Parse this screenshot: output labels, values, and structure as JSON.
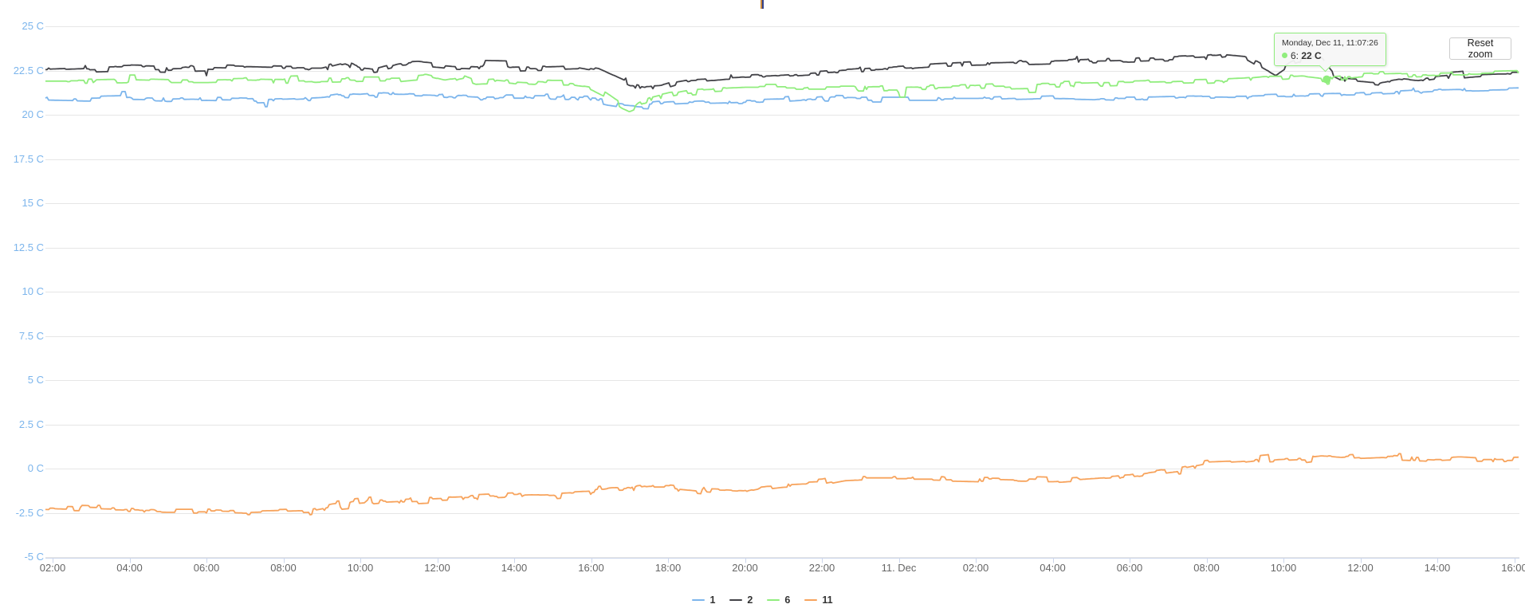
{
  "title_mark": {
    "colors": [
      "#c98a3f",
      "#32418c"
    ]
  },
  "reset_zoom_button": {
    "label": "Reset zoom"
  },
  "tooltip": {
    "header": "Monday, Dec 11, 11:07:26",
    "series": "6:",
    "value": "22 C",
    "marker_color": "#90ed7d",
    "border_color": "#90ed7d",
    "anchor_t_hours": 35.123,
    "anchor_value": 22
  },
  "legend": {
    "items": [
      {
        "label": "1",
        "color": "#7cb5ec"
      },
      {
        "label": "2",
        "color": "#434348"
      },
      {
        "label": "6",
        "color": "#90ed7d"
      },
      {
        "label": "11",
        "color": "#f7a35c"
      }
    ]
  },
  "colors": {
    "background": "#ffffff",
    "grid": "#e6e6e6",
    "axis_line": "#ccd6eb",
    "tick": "#ccd6eb",
    "y_labels": "#7cb5ec",
    "x_labels": "#666666"
  },
  "chart_data": {
    "type": "line",
    "title": "",
    "xlabel": "",
    "ylabel": "",
    "x_unit": "hours since Dec 10 00:00",
    "xlim_hours": [
      1.81,
      40.15
    ],
    "ylim": [
      -5,
      25
    ],
    "grid": "horizontal-only",
    "legend_position": "bottom-center",
    "y_ticks": [
      {
        "v": 25,
        "label": "25 C"
      },
      {
        "v": 22.5,
        "label": "22.5 C"
      },
      {
        "v": 20,
        "label": "20 C"
      },
      {
        "v": 17.5,
        "label": "17.5 C"
      },
      {
        "v": 15,
        "label": "15 C"
      },
      {
        "v": 12.5,
        "label": "12.5 C"
      },
      {
        "v": 10,
        "label": "10 C"
      },
      {
        "v": 7.5,
        "label": "7.5 C"
      },
      {
        "v": 5,
        "label": "5 C"
      },
      {
        "v": 2.5,
        "label": "2.5 C"
      },
      {
        "v": 0,
        "label": "0 C"
      },
      {
        "v": -2.5,
        "label": "-2.5 C"
      },
      {
        "v": -5,
        "label": "-5 C"
      }
    ],
    "x_ticks": [
      {
        "t": 2,
        "label": "02:00"
      },
      {
        "t": 4,
        "label": "04:00"
      },
      {
        "t": 6,
        "label": "06:00"
      },
      {
        "t": 8,
        "label": "08:00"
      },
      {
        "t": 10,
        "label": "10:00"
      },
      {
        "t": 12,
        "label": "12:00"
      },
      {
        "t": 14,
        "label": "14:00"
      },
      {
        "t": 16,
        "label": "16:00"
      },
      {
        "t": 18,
        "label": "18:00"
      },
      {
        "t": 20,
        "label": "20:00"
      },
      {
        "t": 22,
        "label": "22:00"
      },
      {
        "t": 24,
        "label": "11. Dec"
      },
      {
        "t": 26,
        "label": "02:00"
      },
      {
        "t": 28,
        "label": "04:00"
      },
      {
        "t": 30,
        "label": "06:00"
      },
      {
        "t": 32,
        "label": "08:00"
      },
      {
        "t": 34,
        "label": "10:00"
      },
      {
        "t": 36,
        "label": "12:00"
      },
      {
        "t": 38,
        "label": "14:00"
      },
      {
        "t": 40,
        "label": "16:00"
      }
    ],
    "series": [
      {
        "name": "1",
        "color": "#7cb5ec",
        "noise": 0.1,
        "points": [
          [
            1.8,
            20.9
          ],
          [
            3,
            20.85
          ],
          [
            4,
            20.9
          ],
          [
            5,
            20.85
          ],
          [
            6,
            20.9
          ],
          [
            7,
            20.85
          ],
          [
            8,
            20.9
          ],
          [
            9,
            21.0
          ],
          [
            9.5,
            21.15
          ],
          [
            10,
            21.1
          ],
          [
            10.5,
            21.2
          ],
          [
            11,
            21.15
          ],
          [
            12,
            21.1
          ],
          [
            13,
            21.0
          ],
          [
            14,
            21.0
          ],
          [
            15,
            21.0
          ],
          [
            16,
            20.9
          ],
          [
            16.5,
            20.7
          ],
          [
            17,
            20.55
          ],
          [
            17.5,
            20.5
          ],
          [
            18,
            20.6
          ],
          [
            18.5,
            20.65
          ],
          [
            19,
            20.7
          ],
          [
            20,
            20.75
          ],
          [
            21,
            20.8
          ],
          [
            22,
            20.95
          ],
          [
            23,
            20.9
          ],
          [
            24,
            20.9
          ],
          [
            25,
            20.9
          ],
          [
            26,
            20.9
          ],
          [
            27,
            20.95
          ],
          [
            28,
            21.0
          ],
          [
            29,
            20.95
          ],
          [
            30,
            20.9
          ],
          [
            31,
            20.95
          ],
          [
            32,
            21.0
          ],
          [
            33,
            21.0
          ],
          [
            34,
            21.05
          ],
          [
            35,
            21.1
          ],
          [
            36,
            21.15
          ],
          [
            37,
            21.25
          ],
          [
            38,
            21.35
          ],
          [
            39,
            21.4
          ],
          [
            40.2,
            21.45
          ]
        ]
      },
      {
        "name": "2",
        "color": "#434348",
        "noise": 0.14,
        "points": [
          [
            1.8,
            22.55
          ],
          [
            3,
            22.65
          ],
          [
            4,
            22.7
          ],
          [
            5,
            22.65
          ],
          [
            6,
            22.7
          ],
          [
            7,
            22.65
          ],
          [
            8,
            22.6
          ],
          [
            9,
            22.6
          ],
          [
            9.6,
            22.95
          ],
          [
            10,
            22.6
          ],
          [
            10.4,
            22.5
          ],
          [
            11,
            22.85
          ],
          [
            11.5,
            22.9
          ],
          [
            12,
            22.8
          ],
          [
            12.5,
            22.7
          ],
          [
            13,
            22.65
          ],
          [
            14,
            22.6
          ],
          [
            15,
            22.65
          ],
          [
            15.7,
            22.7
          ],
          [
            16.2,
            22.5
          ],
          [
            16.6,
            22.1
          ],
          [
            17,
            21.7
          ],
          [
            17.4,
            21.5
          ],
          [
            17.8,
            21.55
          ],
          [
            18.2,
            21.8
          ],
          [
            18.6,
            21.95
          ],
          [
            19,
            22.0
          ],
          [
            19.5,
            22.1
          ],
          [
            20,
            22.15
          ],
          [
            21,
            22.25
          ],
          [
            22,
            22.4
          ],
          [
            23,
            22.55
          ],
          [
            24,
            22.65
          ],
          [
            25,
            22.8
          ],
          [
            26,
            22.9
          ],
          [
            27,
            22.95
          ],
          [
            28,
            23.0
          ],
          [
            29,
            23.05
          ],
          [
            30,
            23.1
          ],
          [
            31,
            23.15
          ],
          [
            32,
            23.25
          ],
          [
            32.5,
            23.4
          ],
          [
            33,
            23.3
          ],
          [
            33.4,
            22.8
          ],
          [
            33.8,
            22.3
          ],
          [
            34.2,
            22.9
          ],
          [
            34.6,
            23.2
          ],
          [
            35,
            23.1
          ],
          [
            35.3,
            22.3
          ],
          [
            35.6,
            21.95
          ],
          [
            36,
            21.9
          ],
          [
            36.5,
            21.8
          ],
          [
            37,
            22.0
          ],
          [
            37.5,
            21.9
          ],
          [
            38,
            22.05
          ],
          [
            38.5,
            22.15
          ],
          [
            39,
            22.25
          ],
          [
            39.6,
            22.3
          ],
          [
            40.2,
            22.3
          ]
        ]
      },
      {
        "name": "6",
        "color": "#90ed7d",
        "noise": 0.14,
        "points": [
          [
            1.8,
            21.9
          ],
          [
            3,
            21.9
          ],
          [
            4,
            21.95
          ],
          [
            5,
            21.9
          ],
          [
            6,
            21.9
          ],
          [
            7,
            21.95
          ],
          [
            8,
            21.9
          ],
          [
            9,
            21.95
          ],
          [
            10,
            22.0
          ],
          [
            11,
            22.0
          ],
          [
            11.7,
            22.15
          ],
          [
            12.2,
            21.9
          ],
          [
            12.7,
            22.1
          ],
          [
            13,
            21.85
          ],
          [
            13.5,
            21.9
          ],
          [
            14,
            21.8
          ],
          [
            14.5,
            21.75
          ],
          [
            15,
            21.7
          ],
          [
            15.5,
            21.7
          ],
          [
            16,
            21.55
          ],
          [
            16.4,
            21.1
          ],
          [
            16.8,
            20.5
          ],
          [
            17,
            20.3
          ],
          [
            17.3,
            20.6
          ],
          [
            17.6,
            20.9
          ],
          [
            18,
            21.1
          ],
          [
            18.5,
            21.3
          ],
          [
            19,
            21.4
          ],
          [
            19.5,
            21.45
          ],
          [
            20,
            21.5
          ],
          [
            21,
            21.5
          ],
          [
            22,
            21.5
          ],
          [
            23,
            21.5
          ],
          [
            24,
            21.5
          ],
          [
            25,
            21.55
          ],
          [
            26,
            21.6
          ],
          [
            27,
            21.65
          ],
          [
            28,
            21.7
          ],
          [
            29,
            21.75
          ],
          [
            30,
            21.8
          ],
          [
            31,
            21.85
          ],
          [
            32,
            21.9
          ],
          [
            33,
            22.0
          ],
          [
            33.5,
            22.1
          ],
          [
            34,
            22.1
          ],
          [
            34.5,
            22.15
          ],
          [
            35.1,
            22.0
          ],
          [
            35.6,
            22.1
          ],
          [
            36,
            22.2
          ],
          [
            37,
            22.25
          ],
          [
            38,
            22.3
          ],
          [
            39,
            22.35
          ],
          [
            40.2,
            22.4
          ]
        ]
      },
      {
        "name": "11",
        "color": "#f7a35c",
        "noise": 0.13,
        "points": [
          [
            1.8,
            -2.2
          ],
          [
            3,
            -2.3
          ],
          [
            4,
            -2.35
          ],
          [
            5,
            -2.4
          ],
          [
            6,
            -2.4
          ],
          [
            7,
            -2.45
          ],
          [
            8,
            -2.4
          ],
          [
            8.7,
            -2.35
          ],
          [
            9.3,
            -2.1
          ],
          [
            10,
            -1.95
          ],
          [
            10.5,
            -1.85
          ],
          [
            11,
            -1.8
          ],
          [
            12,
            -1.7
          ],
          [
            13,
            -1.6
          ],
          [
            14,
            -1.5
          ],
          [
            15,
            -1.45
          ],
          [
            16,
            -1.35
          ],
          [
            16.5,
            -1.2
          ],
          [
            17,
            -1.15
          ],
          [
            17.5,
            -1.0
          ],
          [
            18,
            -1.0
          ],
          [
            18.5,
            -1.1
          ],
          [
            19,
            -1.2
          ],
          [
            19.5,
            -1.25
          ],
          [
            20,
            -1.3
          ],
          [
            20.4,
            -1.1
          ],
          [
            21,
            -0.95
          ],
          [
            22,
            -0.85
          ],
          [
            22.6,
            -0.6
          ],
          [
            23,
            -0.55
          ],
          [
            24,
            -0.55
          ],
          [
            25,
            -0.55
          ],
          [
            26,
            -0.6
          ],
          [
            27,
            -0.65
          ],
          [
            28,
            -0.7
          ],
          [
            29,
            -0.55
          ],
          [
            30,
            -0.4
          ],
          [
            30.7,
            -0.2
          ],
          [
            31.4,
            0.0
          ],
          [
            32,
            0.25
          ],
          [
            32.6,
            0.3
          ],
          [
            33,
            0.35
          ],
          [
            33.6,
            0.5
          ],
          [
            34,
            0.55
          ],
          [
            34.6,
            0.6
          ],
          [
            35,
            0.7
          ],
          [
            35.5,
            0.6
          ],
          [
            36,
            0.65
          ],
          [
            36.6,
            0.7
          ],
          [
            37,
            0.6
          ],
          [
            37.6,
            0.55
          ],
          [
            38,
            0.5
          ],
          [
            38.6,
            0.55
          ],
          [
            39,
            0.5
          ],
          [
            39.6,
            0.5
          ],
          [
            40.2,
            0.55
          ]
        ]
      }
    ]
  }
}
